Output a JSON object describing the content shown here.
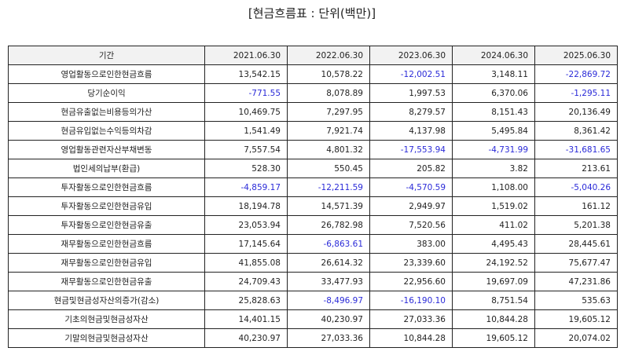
{
  "title": "[현금흐름표 : 단위(백만)]",
  "colors": {
    "negative": "#2a2ad8",
    "text": "#222222",
    "header_bg": "#f2f2f2",
    "border": "#222222"
  },
  "table": {
    "headers": [
      "기간",
      "2021.06.30",
      "2022.06.30",
      "2023.06.30",
      "2024.06.30",
      "2025.06.30"
    ],
    "rows": [
      {
        "label": "영업활동으로인한현금흐름",
        "values": [
          "13,542.15",
          "10,578.22",
          "-12,002.51",
          "3,148.11",
          "-22,869.72"
        ]
      },
      {
        "label": "당기순이익",
        "values": [
          "-771.55",
          "8,078.89",
          "1,997.53",
          "6,370.06",
          "-1,295.11"
        ]
      },
      {
        "label": "현금유출없는비용등의가산",
        "values": [
          "10,469.75",
          "7,297.95",
          "8,279.57",
          "8,151.43",
          "20,136.49"
        ]
      },
      {
        "label": "현금유입없는수익등의차감",
        "values": [
          "1,541.49",
          "7,921.74",
          "4,137.98",
          "5,495.84",
          "8,361.42"
        ]
      },
      {
        "label": "영업활동관련자산부채변동",
        "values": [
          "7,557.54",
          "4,801.32",
          "-17,553.94",
          "-4,731.99",
          "-31,681.65"
        ]
      },
      {
        "label": "법인세의납부(환급)",
        "values": [
          "528.30",
          "550.45",
          "205.82",
          "3.82",
          "213.61"
        ]
      },
      {
        "label": "투자활동으로인한현금흐름",
        "values": [
          "-4,859.17",
          "-12,211.59",
          "-4,570.59",
          "1,108.00",
          "-5,040.26"
        ]
      },
      {
        "label": "투자활동으로인한현금유입",
        "values": [
          "18,194.78",
          "14,571.39",
          "2,949.97",
          "1,519.02",
          "161.12"
        ]
      },
      {
        "label": "투자활동으로인한현금유출",
        "values": [
          "23,053.94",
          "26,782.98",
          "7,520.56",
          "411.02",
          "5,201.38"
        ]
      },
      {
        "label": "재무활동으로인한현금흐름",
        "values": [
          "17,145.64",
          "-6,863.61",
          "383.00",
          "4,495.43",
          "28,445.61"
        ]
      },
      {
        "label": "재무활동으로인한현금유입",
        "values": [
          "41,855.08",
          "26,614.32",
          "23,339.60",
          "24,192.52",
          "75,677.47"
        ]
      },
      {
        "label": "재무활동으로인한현금유출",
        "values": [
          "24,709.43",
          "33,477.93",
          "22,956.60",
          "19,697.09",
          "47,231.86"
        ]
      },
      {
        "label": "현금및현금성자산의증가(감소)",
        "values": [
          "25,828.63",
          "-8,496.97",
          "-16,190.10",
          "8,751.54",
          "535.63"
        ]
      },
      {
        "label": "기초의현금및현금성자산",
        "values": [
          "14,401.15",
          "40,230.97",
          "27,033.36",
          "10,844.28",
          "19,605.12"
        ]
      },
      {
        "label": "기말의현금및현금성자산",
        "values": [
          "40,230.97",
          "27,033.36",
          "10,844.28",
          "19,605.12",
          "20,074.02"
        ]
      }
    ]
  }
}
